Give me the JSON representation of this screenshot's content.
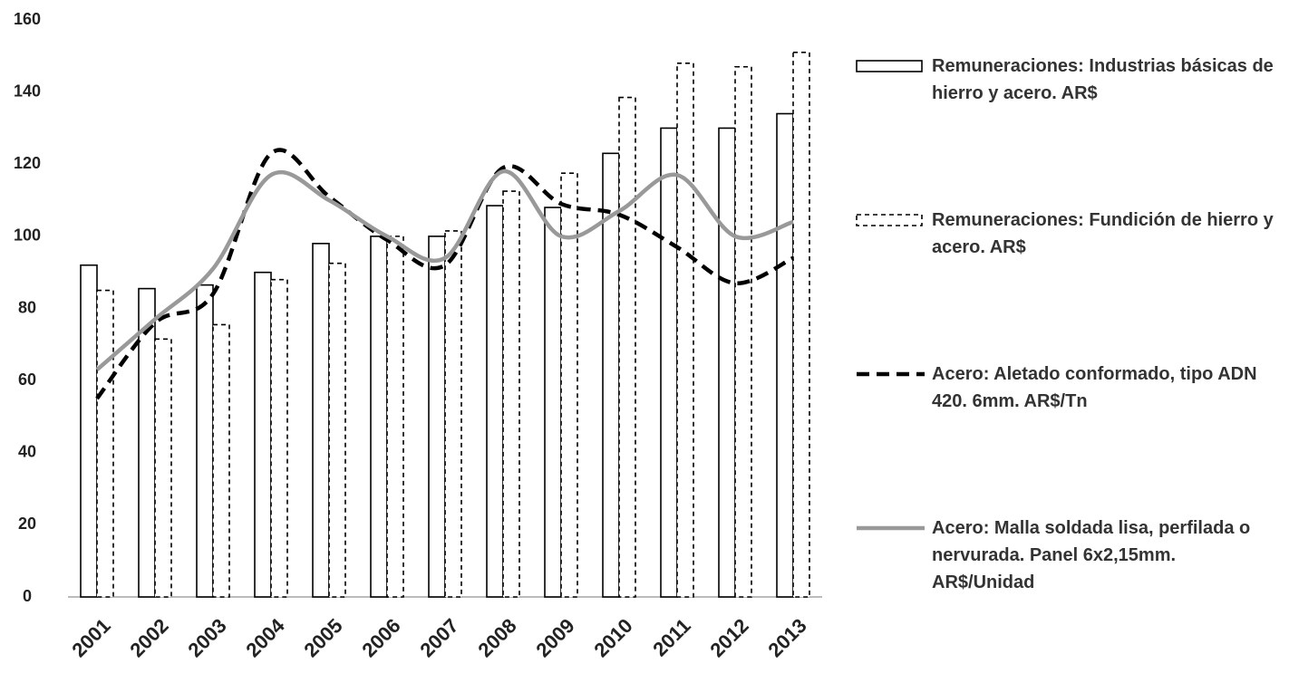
{
  "chart_data": {
    "type": "bar-line",
    "categories": [
      "2001",
      "2002",
      "2003",
      "2004",
      "2005",
      "2006",
      "2007",
      "2008",
      "2009",
      "2010",
      "2011",
      "2012",
      "2013"
    ],
    "ylim": [
      0,
      160
    ],
    "yticks": [
      0,
      20,
      40,
      60,
      80,
      100,
      120,
      140,
      160
    ],
    "grid": false,
    "legend": "right",
    "series": [
      {
        "name": "Remuneraciones: Industrias básicas de hierro y acero. AR$",
        "kind": "bar",
        "color": "#000000",
        "dashed": false,
        "values": [
          92,
          85.5,
          86.5,
          90,
          98,
          100,
          100,
          108.5,
          108,
          123,
          130,
          130,
          134
        ]
      },
      {
        "name": "Remuneraciones: Fundición de hierro y acero. AR$",
        "kind": "bar",
        "color": "#000000",
        "dashed": true,
        "values": [
          85,
          71.5,
          75.5,
          88,
          92.5,
          100,
          101.5,
          112.5,
          117.5,
          138.5,
          148,
          147,
          151
        ]
      },
      {
        "name": "Acero: Aletado conformado, tipo ADN 420. 6mm. AR$/Tn",
        "kind": "line",
        "color": "#000000",
        "dashed": true,
        "values": [
          55,
          76,
          84,
          123,
          111,
          99,
          92,
          119,
          109,
          106,
          97,
          87,
          94
        ]
      },
      {
        "name": "Acero: Malla soldada lisa, perfilada o nervurada. Panel 6x2,15mm. AR$/Unidad",
        "kind": "line",
        "color": "#999999",
        "dashed": false,
        "values": [
          63,
          77,
          91,
          117,
          110,
          100,
          94,
          118,
          100,
          107,
          117,
          100,
          104
        ]
      }
    ]
  }
}
